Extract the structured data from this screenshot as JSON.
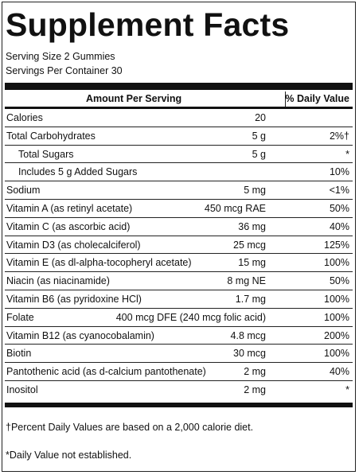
{
  "title": "Supplement Facts",
  "serving_size": "Serving Size 2 Gummies",
  "servings_per_container": "Servings Per Container 30",
  "header": {
    "amount_per_serving": "Amount Per Serving",
    "daily_value": "% Daily Value"
  },
  "rows": [
    {
      "name": "Calories",
      "amount": "20",
      "dv": ""
    },
    {
      "name": "Total Carbohydrates",
      "amount": "5 g",
      "dv": "2%†"
    },
    {
      "name": "Total Sugars",
      "amount": "5 g",
      "dv": "*"
    },
    {
      "name": "Includes 5 g Added Sugars",
      "amount": "",
      "dv": "10%"
    },
    {
      "name": "Sodium",
      "amount": "5 mg",
      "dv": "<1%"
    },
    {
      "name": "Vitamin A (as retinyl acetate)",
      "amount": "450 mcg RAE",
      "dv": "50%"
    },
    {
      "name": "Vitamin C (as ascorbic acid)",
      "amount": "36 mg",
      "dv": "40%"
    },
    {
      "name": "Vitamin D3 (as cholecalciferol)",
      "amount": "25 mcg",
      "dv": "125%"
    },
    {
      "name": "Vitamin E (as dl-alpha-tocopheryl acetate)",
      "amount": "15 mg",
      "dv": "100%"
    },
    {
      "name": "Niacin (as niacinamide)",
      "amount": "8 mg NE",
      "dv": "50%"
    },
    {
      "name": "Vitamin B6 (as pyridoxine HCl)",
      "amount": "1.7 mg",
      "dv": "100%"
    },
    {
      "name": "Folate",
      "amount": "400 mcg DFE (240 mcg folic acid)",
      "dv": "100%"
    },
    {
      "name": "Vitamin B12 (as cyanocobalamin)",
      "amount": "4.8 mcg",
      "dv": "200%"
    },
    {
      "name": "Biotin",
      "amount": "30 mcg",
      "dv": "100%"
    },
    {
      "name": "Pantothenic acid (as d-calcium pantothenate)",
      "amount": "2 mg",
      "dv": "40%"
    },
    {
      "name": "Inositol",
      "amount": "2 mg",
      "dv": "*"
    }
  ],
  "footnotes": {
    "percent_dv": "†Percent Daily Values are based on a 2,000 calorie diet.",
    "not_established": "*Daily Value not established."
  }
}
